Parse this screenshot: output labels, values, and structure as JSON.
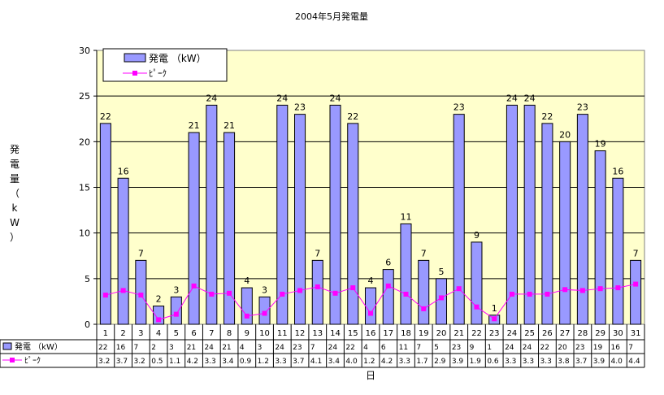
{
  "chart_data": {
    "type": "bar",
    "title": "2004年5月発電量",
    "xlabel": "日",
    "ylabel": "発電量（kW）",
    "ylim": [
      0,
      30
    ],
    "yticks": [
      0,
      5,
      10,
      15,
      20,
      25,
      30
    ],
    "grid": true,
    "legend_position": "top-left",
    "categories": [
      "1",
      "2",
      "3",
      "4",
      "5",
      "6",
      "7",
      "8",
      "9",
      "10",
      "11",
      "12",
      "13",
      "14",
      "15",
      "16",
      "17",
      "18",
      "19",
      "20",
      "21",
      "22",
      "23",
      "24",
      "25",
      "26",
      "27",
      "28",
      "29",
      "30",
      "31"
    ],
    "series": [
      {
        "name": "発電 （kW）",
        "kind": "bar",
        "color": "#9999ff",
        "values": [
          22,
          16,
          7,
          2,
          3,
          21,
          24,
          21,
          4,
          3,
          24,
          23,
          7,
          24,
          22,
          4,
          6,
          11,
          7,
          5,
          23,
          9,
          1,
          24,
          24,
          22,
          20,
          23,
          19,
          16,
          7
        ]
      },
      {
        "name": "ﾋﾟｰｸ",
        "kind": "line",
        "color": "#ff00ff",
        "values": [
          3.2,
          3.7,
          3.2,
          0.5,
          1.1,
          4.2,
          3.3,
          3.4,
          0.9,
          1.2,
          3.3,
          3.7,
          4.1,
          3.4,
          4.0,
          1.2,
          4.2,
          3.3,
          1.7,
          2.9,
          3.9,
          1.9,
          0.6,
          3.3,
          3.3,
          3.3,
          3.8,
          3.7,
          3.9,
          4.0,
          4.4
        ]
      }
    ]
  },
  "colors": {
    "plot_background": "#ffffcc",
    "bar_fill": "#9999ff",
    "line": "#ff00ff"
  }
}
